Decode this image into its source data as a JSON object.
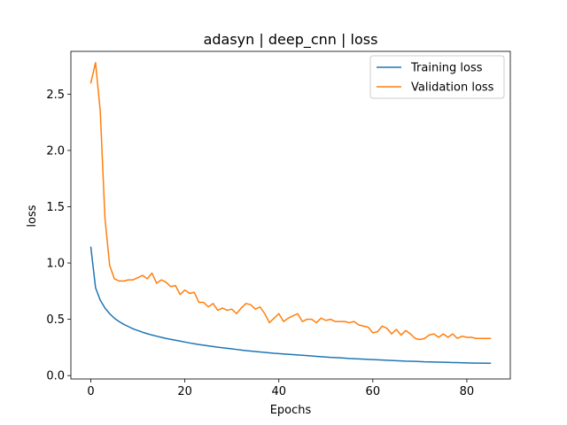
{
  "chart_data": {
    "type": "line",
    "title": "adasyn | deep_cnn | loss",
    "xlabel": "Epochs",
    "ylabel": "loss",
    "xlim": [
      -4.25,
      89.25
    ],
    "ylim": [
      -0.03,
      2.88
    ],
    "xticks": [
      0,
      20,
      40,
      60,
      80
    ],
    "yticks": [
      0.0,
      0.5,
      1.0,
      1.5,
      2.0,
      2.5
    ],
    "grid": false,
    "legend_position": "top-right",
    "series": [
      {
        "name": "Training loss",
        "color": "#1f77b4",
        "x": [
          0,
          1,
          2,
          3,
          4,
          5,
          6,
          7,
          8,
          9,
          10,
          11,
          12,
          13,
          14,
          15,
          16,
          17,
          18,
          19,
          20,
          21,
          22,
          23,
          24,
          25,
          26,
          27,
          28,
          29,
          30,
          31,
          32,
          33,
          34,
          35,
          36,
          37,
          38,
          39,
          40,
          41,
          42,
          43,
          44,
          45,
          46,
          47,
          48,
          49,
          50,
          51,
          52,
          53,
          54,
          55,
          56,
          57,
          58,
          59,
          60,
          61,
          62,
          63,
          64,
          65,
          66,
          67,
          68,
          69,
          70,
          71,
          72,
          73,
          74,
          75,
          76,
          77,
          78,
          79,
          80,
          81,
          82,
          83,
          84,
          85
        ],
        "values": [
          1.14,
          0.78,
          0.67,
          0.6,
          0.55,
          0.51,
          0.48,
          0.455,
          0.435,
          0.415,
          0.4,
          0.385,
          0.372,
          0.36,
          0.35,
          0.34,
          0.33,
          0.322,
          0.314,
          0.306,
          0.298,
          0.29,
          0.283,
          0.276,
          0.27,
          0.264,
          0.258,
          0.252,
          0.247,
          0.242,
          0.237,
          0.232,
          0.227,
          0.222,
          0.218,
          0.214,
          0.21,
          0.206,
          0.202,
          0.198,
          0.195,
          0.192,
          0.189,
          0.186,
          0.183,
          0.18,
          0.177,
          0.174,
          0.171,
          0.168,
          0.165,
          0.162,
          0.16,
          0.158,
          0.155,
          0.152,
          0.15,
          0.148,
          0.146,
          0.144,
          0.142,
          0.14,
          0.138,
          0.136,
          0.134,
          0.132,
          0.13,
          0.128,
          0.127,
          0.126,
          0.124,
          0.122,
          0.121,
          0.12,
          0.119,
          0.118,
          0.117,
          0.116,
          0.115,
          0.114,
          0.113,
          0.112,
          0.111,
          0.111,
          0.11,
          0.11
        ]
      },
      {
        "name": "Validation loss",
        "color": "#ff7f0e",
        "x": [
          0,
          1,
          2,
          3,
          4,
          5,
          6,
          7,
          8,
          9,
          10,
          11,
          12,
          13,
          14,
          15,
          16,
          17,
          18,
          19,
          20,
          21,
          22,
          23,
          24,
          25,
          26,
          27,
          28,
          29,
          30,
          31,
          32,
          33,
          34,
          35,
          36,
          37,
          38,
          39,
          40,
          41,
          42,
          43,
          44,
          45,
          46,
          47,
          48,
          49,
          50,
          51,
          52,
          53,
          54,
          55,
          56,
          57,
          58,
          59,
          60,
          61,
          62,
          63,
          64,
          65,
          66,
          67,
          68,
          69,
          70,
          71,
          72,
          73,
          74,
          75,
          76,
          77,
          78,
          79,
          80,
          81,
          82,
          83,
          84,
          85
        ],
        "values": [
          2.6,
          2.78,
          2.35,
          1.4,
          0.98,
          0.86,
          0.84,
          0.84,
          0.85,
          0.85,
          0.87,
          0.89,
          0.86,
          0.91,
          0.82,
          0.85,
          0.83,
          0.79,
          0.8,
          0.72,
          0.76,
          0.73,
          0.74,
          0.65,
          0.65,
          0.61,
          0.64,
          0.58,
          0.6,
          0.58,
          0.59,
          0.55,
          0.6,
          0.64,
          0.63,
          0.59,
          0.61,
          0.55,
          0.47,
          0.51,
          0.55,
          0.48,
          0.51,
          0.53,
          0.55,
          0.48,
          0.5,
          0.5,
          0.47,
          0.51,
          0.49,
          0.5,
          0.48,
          0.48,
          0.48,
          0.47,
          0.48,
          0.45,
          0.44,
          0.43,
          0.38,
          0.39,
          0.44,
          0.42,
          0.37,
          0.41,
          0.36,
          0.4,
          0.37,
          0.33,
          0.32,
          0.33,
          0.36,
          0.37,
          0.34,
          0.37,
          0.34,
          0.37,
          0.33,
          0.35,
          0.34,
          0.34,
          0.33,
          0.33,
          0.33,
          0.33
        ]
      }
    ]
  }
}
